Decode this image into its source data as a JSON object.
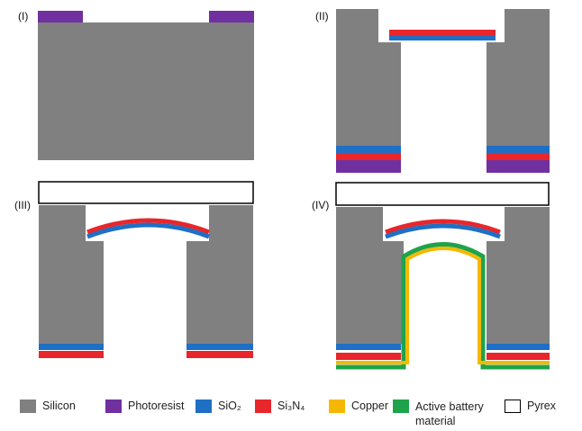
{
  "panels": [
    {
      "label": "(I)"
    },
    {
      "label": "(II)"
    },
    {
      "label": "(III)"
    },
    {
      "label": "(IV)"
    }
  ],
  "legend": [
    {
      "label": "Silicon"
    },
    {
      "label": "Photoresist"
    },
    {
      "label": "SiO₂"
    },
    {
      "label": "Si₃N₄"
    },
    {
      "label": "Copper"
    },
    {
      "label": "Active battery material"
    },
    {
      "label": "Pyrex"
    }
  ]
}
